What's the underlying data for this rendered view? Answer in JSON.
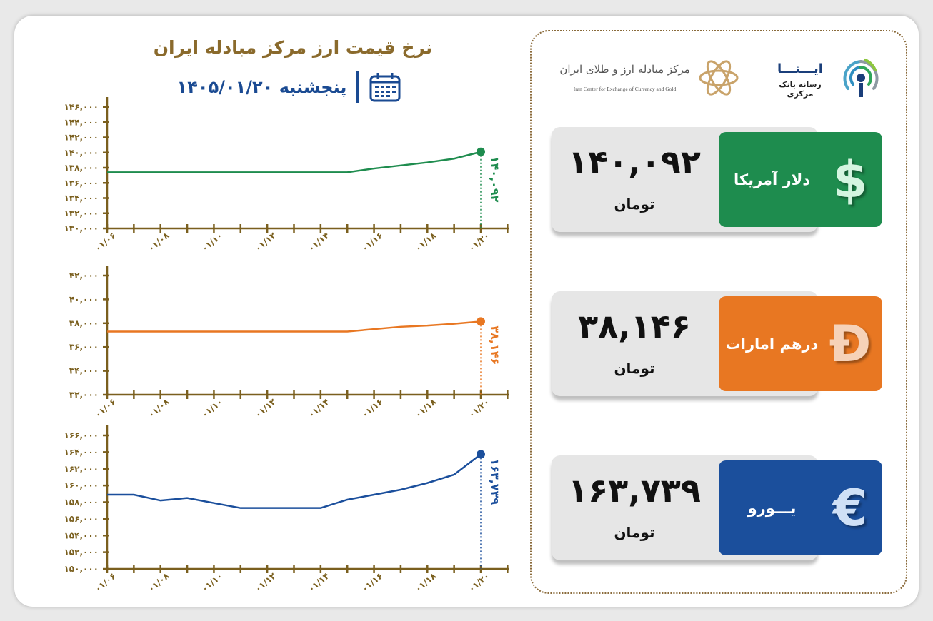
{
  "header": {
    "title": "نرخ قیمت ارز مرکز مبادله ایران",
    "date": "پنجشنبه ۱۴۰۵/۰۱/۲۰",
    "calendar_icon": "calendar-icon"
  },
  "logos": {
    "center_fa": "مرکز مبادله ارز و طلای ایران",
    "center_en": "Iran Center for Exchange of Currency and Gold",
    "ina_title": "ایـــنـــا",
    "ina_sub": "رسانه بانک مرکزی"
  },
  "cards": [
    {
      "name": "دلار آمریکا",
      "value": "۱۴۰,۰۹۲",
      "unit": "تومان",
      "symbol": "$",
      "color": "#1e8c4e",
      "symbol_color": "#d4f5e0"
    },
    {
      "name": "درهم امارات",
      "value": "۳۸,۱۴۶",
      "unit": "تومان",
      "symbol": "Đ",
      "color": "#e87722",
      "symbol_color": "#f6d2b8"
    },
    {
      "name": "یـــورو",
      "value": "۱۶۳,۷۳۹",
      "unit": "تومان",
      "symbol": "€",
      "color": "#1b4f9c",
      "symbol_color": "#cfe0f6"
    }
  ],
  "chart_data": [
    {
      "type": "line",
      "color": "#1e8c4e",
      "x": [
        "01/06",
        "01/07",
        "01/08",
        "01/09",
        "01/10",
        "01/11",
        "01/12",
        "01/13",
        "01/14",
        "01/15",
        "01/16",
        "01/17",
        "01/18",
        "01/19",
        "01/20"
      ],
      "xtick_labels": [
        "۰۱/۰۶",
        "۰۱/۰۸",
        "۰۱/۱۰",
        "۰۱/۱۲",
        "۰۱/۱۴",
        "۰۱/۱۶",
        "۰۱/۱۸",
        "۰۱/۲۰"
      ],
      "values": [
        137400,
        137400,
        137400,
        137400,
        137400,
        137400,
        137400,
        137400,
        137400,
        137400,
        137900,
        138300,
        138700,
        139200,
        140092
      ],
      "ylim": [
        130000,
        146000
      ],
      "yticks": [
        130000,
        132000,
        134000,
        136000,
        138000,
        140000,
        142000,
        144000,
        146000
      ],
      "ytick_labels": [
        "۱۳۰,۰۰۰",
        "۱۳۲,۰۰۰",
        "۱۳۴,۰۰۰",
        "۱۳۶,۰۰۰",
        "۱۳۸,۰۰۰",
        "۱۴۰,۰۰۰",
        "۱۴۲,۰۰۰",
        "۱۴۴,۰۰۰",
        "۱۴۶,۰۰۰"
      ],
      "end_label": "۱۴۰,۰۹۲"
    },
    {
      "type": "line",
      "color": "#e87722",
      "x": [
        "01/06",
        "01/07",
        "01/08",
        "01/09",
        "01/10",
        "01/11",
        "01/12",
        "01/13",
        "01/14",
        "01/15",
        "01/16",
        "01/17",
        "01/18",
        "01/19",
        "01/20"
      ],
      "xtick_labels": [
        "۰۱/۰۶",
        "۰۱/۰۸",
        "۰۱/۱۰",
        "۰۱/۱۲",
        "۰۱/۱۴",
        "۰۱/۱۶",
        "۰۱/۱۸",
        "۰۱/۲۰"
      ],
      "values": [
        37300,
        37300,
        37300,
        37300,
        37300,
        37300,
        37300,
        37300,
        37300,
        37300,
        37500,
        37700,
        37800,
        37950,
        38146
      ],
      "ylim": [
        32000,
        42000
      ],
      "yticks": [
        32000,
        34000,
        36000,
        38000,
        40000,
        42000
      ],
      "ytick_labels": [
        "۳۲,۰۰۰",
        "۳۴,۰۰۰",
        "۳۶,۰۰۰",
        "۳۸,۰۰۰",
        "۴۰,۰۰۰",
        "۴۲,۰۰۰"
      ],
      "end_label": "۳۸,۱۴۶"
    },
    {
      "type": "line",
      "color": "#1b4f9c",
      "x": [
        "01/06",
        "01/07",
        "01/08",
        "01/09",
        "01/10",
        "01/11",
        "01/12",
        "01/13",
        "01/14",
        "01/15",
        "01/16",
        "01/17",
        "01/18",
        "01/19",
        "01/20"
      ],
      "xtick_labels": [
        "۰۱/۰۶",
        "۰۱/۰۸",
        "۰۱/۱۰",
        "۰۱/۱۲",
        "۰۱/۱۴",
        "۰۱/۱۶",
        "۰۱/۱۸",
        "۰۱/۲۰"
      ],
      "values": [
        158900,
        158900,
        158200,
        158500,
        157900,
        157300,
        157300,
        157300,
        157300,
        158300,
        158900,
        159500,
        160300,
        161300,
        163739
      ],
      "ylim": [
        150000,
        166000
      ],
      "yticks": [
        150000,
        152000,
        154000,
        156000,
        158000,
        160000,
        162000,
        164000,
        166000
      ],
      "ytick_labels": [
        "۱۵۰,۰۰۰",
        "۱۵۲,۰۰۰",
        "۱۵۴,۰۰۰",
        "۱۵۶,۰۰۰",
        "۱۵۸,۰۰۰",
        "۱۶۰,۰۰۰",
        "۱۶۲,۰۰۰",
        "۱۶۴,۰۰۰",
        "۱۶۶,۰۰۰"
      ],
      "end_label": "۱۶۳,۷۳۹"
    }
  ]
}
